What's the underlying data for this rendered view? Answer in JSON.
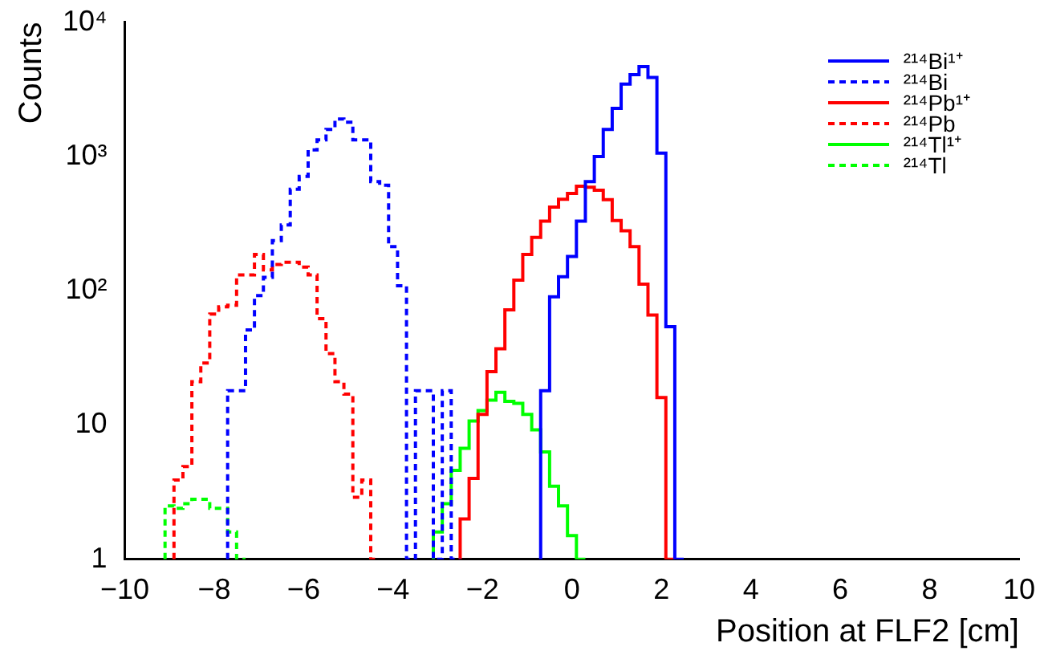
{
  "chart_data": {
    "type": "step",
    "xlabel": "Position at FLF2 [cm]",
    "ylabel": "Counts",
    "xlim": [
      -10,
      10
    ],
    "xticks": [
      -10,
      -8,
      -6,
      -4,
      -2,
      0,
      2,
      4,
      6,
      8,
      10
    ],
    "ylim": [
      1,
      10000
    ],
    "yticks": [
      1,
      10,
      {
        "value": 100,
        "label": "10²"
      },
      {
        "value": 1000,
        "label": "10³"
      },
      {
        "value": 10000,
        "label": "10⁴"
      }
    ],
    "log": "y",
    "grid": false,
    "legend": "top right",
    "marker": "none",
    "series": [
      {
        "name": "²¹⁴Bi¹⁺",
        "color": "#0000ff",
        "line_style": "solid",
        "x": [
          -0.7,
          -0.5,
          -0.3,
          -0.1,
          0.1,
          0.3,
          0.5,
          0.7,
          0.9,
          1.1,
          1.3,
          1.5,
          1.7,
          1.9,
          2.1,
          2.3,
          2.5
        ],
        "values": [
          1,
          18,
          90,
          127,
          180,
          330,
          650,
          1000,
          1590,
          2280,
          3460,
          4060,
          4660,
          3880,
          1060,
          54,
          1
        ]
      },
      {
        "name": "²¹⁴Bi",
        "color": "#0000ff",
        "line_style": "dashed",
        "x": [
          -7.7,
          -7.5,
          -7.3,
          -7.1,
          -6.9,
          -6.7,
          -6.5,
          -6.3,
          -6.1,
          -5.9,
          -5.7,
          -5.5,
          -5.3,
          -5.1,
          -4.9,
          -4.7,
          -4.5,
          -4.3,
          -4.1,
          -3.9,
          -3.7,
          -3.5,
          -3.1,
          -2.9,
          -2.7,
          -2.5
        ],
        "values": [
          1,
          18,
          18,
          51,
          92,
          126,
          236,
          309,
          570,
          710,
          1120,
          1330,
          1590,
          1900,
          1800,
          1330,
          1330,
          650,
          610,
          213,
          109,
          1,
          18,
          1,
          18,
          1
        ]
      },
      {
        "name": "²¹⁴Pb¹⁺",
        "color": "#ff0000",
        "line_style": "solid",
        "x": [
          -2.5,
          -2.3,
          -2.1,
          -1.9,
          -1.7,
          -1.5,
          -1.3,
          -1.1,
          -0.9,
          -0.7,
          -0.5,
          -0.3,
          -0.1,
          0.1,
          0.3,
          0.5,
          0.7,
          0.9,
          1.1,
          1.3,
          1.5,
          1.7,
          1.9,
          2.1,
          2.3
        ],
        "values": [
          1,
          2,
          4,
          12,
          25,
          37,
          72,
          120,
          186,
          250,
          330,
          420,
          480,
          530,
          600,
          590,
          560,
          476,
          333,
          280,
          213,
          112,
          66,
          16,
          1
        ]
      },
      {
        "name": "²¹⁴Pb",
        "color": "#ff0000",
        "line_style": "dashed",
        "x": [
          -8.9,
          -8.7,
          -8.5,
          -8.3,
          -8.1,
          -7.9,
          -7.7,
          -7.5,
          -7.3,
          -7.1,
          -6.9,
          -6.7,
          -6.5,
          -6.3,
          -6.1,
          -5.9,
          -5.7,
          -5.5,
          -5.3,
          -5.1,
          -4.9,
          -4.7,
          -4.5,
          -4.3
        ],
        "values": [
          1,
          3.9,
          4.9,
          21,
          29,
          67,
          76,
          78,
          131,
          131,
          186,
          143,
          157,
          163,
          163,
          150,
          131,
          62,
          34,
          21,
          17,
          2.9,
          3.9,
          1
        ]
      },
      {
        "name": "²¹⁴Tl¹⁺",
        "color": "#00ff00",
        "line_style": "solid",
        "x": [
          -3.1,
          -2.9,
          -2.7,
          -2.5,
          -2.3,
          -2.1,
          -1.9,
          -1.7,
          -1.5,
          -1.3,
          -1.1,
          -0.9,
          -0.7,
          -0.5,
          -0.3,
          -0.1,
          0.1,
          0.3
        ],
        "values": [
          1,
          1.6,
          2.6,
          4.6,
          6.7,
          10.7,
          12.8,
          15.3,
          17.5,
          15,
          14.5,
          12,
          9.2,
          6.3,
          3.5,
          2.5,
          1.5,
          1
        ]
      },
      {
        "name": "²¹⁴Tl",
        "color": "#00ff00",
        "line_style": "dashed",
        "x": [
          -9.1,
          -8.9,
          -8.7,
          -8.5,
          -8.3,
          -8.1,
          -7.9,
          -7.7,
          -7.5,
          -7.3
        ],
        "values": [
          1,
          2.5,
          2.4,
          2.6,
          2.8,
          2.8,
          2.4,
          2.4,
          1.6,
          1
        ]
      }
    ]
  }
}
